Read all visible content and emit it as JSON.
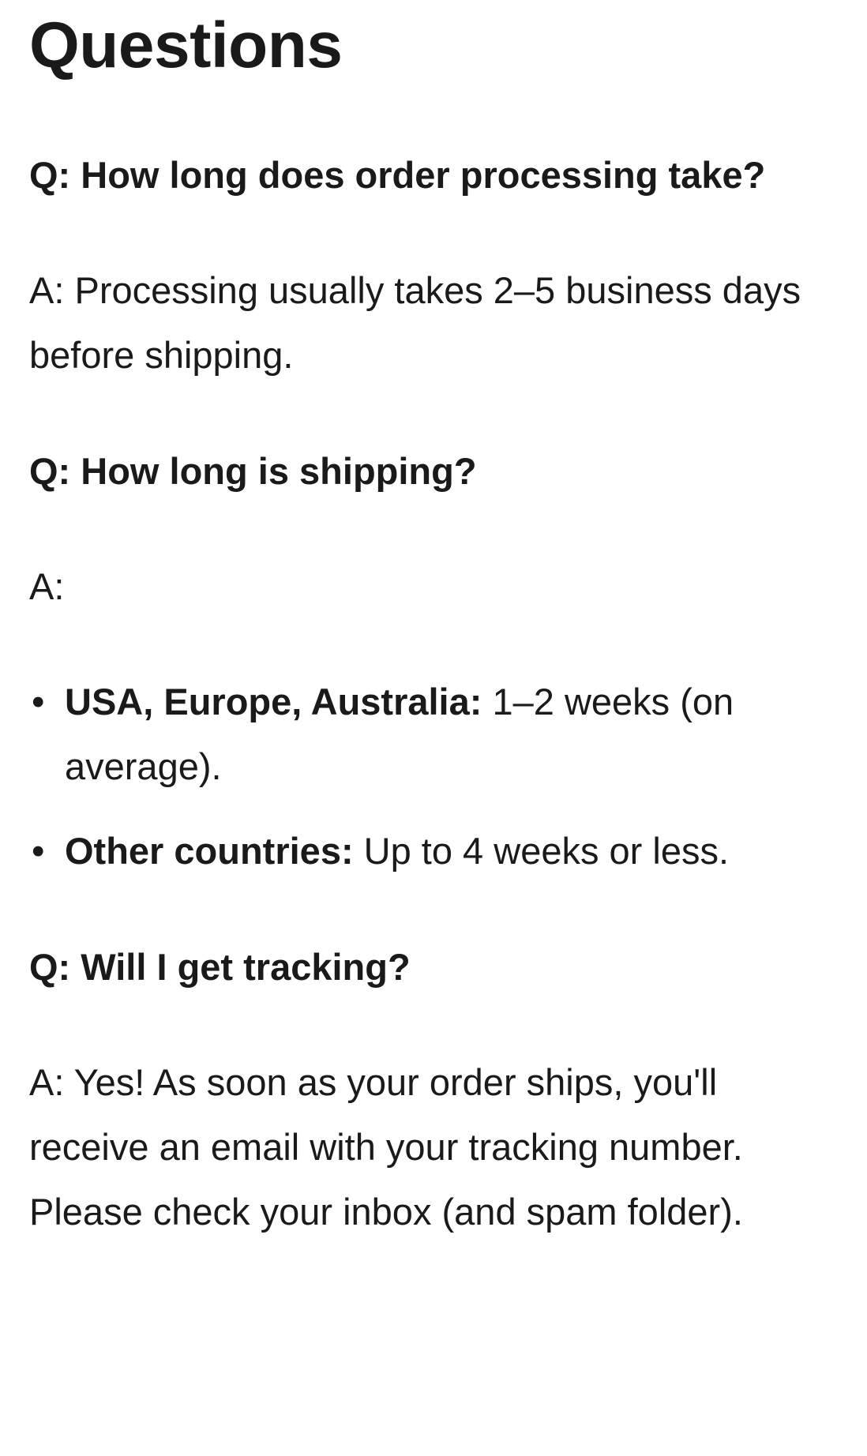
{
  "title": "Questions",
  "faq": [
    {
      "question": "Q: How long does order processing take?",
      "answer": "A: Processing usually takes 2–5 business days before shipping."
    },
    {
      "question": "Q: How long is shipping?",
      "answer": "A:",
      "bullets": [
        {
          "label": "USA, Europe, Australia:",
          "text": " 1–2 weeks (on average)."
        },
        {
          "label": "Other countries:",
          "text": " Up to 4 weeks or less."
        }
      ]
    },
    {
      "question": "Q: Will I get tracking?",
      "answer": "A: Yes! As soon as your order ships, you'll receive an email with your tracking number. Please check your inbox (and spam folder)."
    }
  ]
}
